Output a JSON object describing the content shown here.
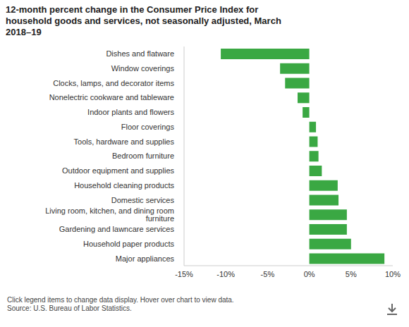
{
  "chart_data": {
    "type": "bar",
    "orientation": "horizontal",
    "title": "12-month percent change in the Consumer Price Index for household goods and services, not seasonally adjusted, March 2018–19",
    "categories": [
      "Dishes and flatware",
      "Window coverings",
      "Clocks, lamps, and decorator items",
      "Nonelectric cookware and tableware",
      "Indoor plants and flowers",
      "Floor coverings",
      "Tools, hardware and supplies",
      "Bedroom furniture",
      "Outdoor equipment and supplies",
      "Household cleaning products",
      "Domestic services",
      "Living room, kitchen, and dining room furniture",
      "Gardening and lawncare services",
      "Household paper products",
      "Major appliances"
    ],
    "values": [
      -10.6,
      -3.5,
      -2.9,
      -1.4,
      -0.8,
      0.8,
      1.0,
      1.1,
      1.5,
      3.4,
      3.5,
      4.5,
      4.5,
      5.0,
      9.0
    ],
    "color": "#3aa843",
    "xlim": [
      -15,
      10
    ],
    "xticks": [
      {
        "value": -15,
        "label": "-15%"
      },
      {
        "value": -10,
        "label": "-10%"
      },
      {
        "value": -5,
        "label": "-5%"
      },
      {
        "value": 0,
        "label": "0%"
      },
      {
        "value": 5,
        "label": "5%"
      },
      {
        "value": 10,
        "label": "10%"
      }
    ],
    "grid": false,
    "annotations": [
      "Click legend items to change data display. Hover over chart to view data.",
      "Source: U.S. Bureau of Labor Statistics."
    ]
  }
}
